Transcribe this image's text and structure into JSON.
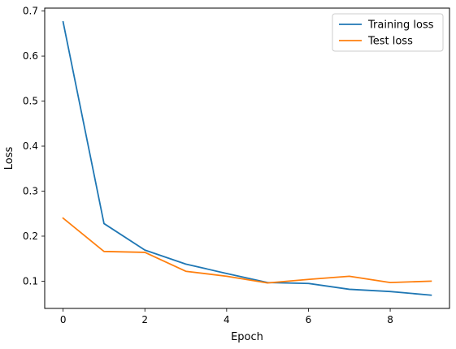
{
  "chart_data": {
    "type": "line",
    "title": "",
    "xlabel": "Epoch",
    "ylabel": "Loss",
    "xlim": [
      -0.45,
      9.45
    ],
    "ylim": [
      0.0395,
      0.7065
    ],
    "xticks": [
      0,
      2,
      4,
      6,
      8
    ],
    "xtick_labels": [
      "0",
      "2",
      "4",
      "6",
      "8"
    ],
    "yticks": [
      0.1,
      0.2,
      0.3,
      0.4,
      0.5,
      0.6,
      0.7
    ],
    "ytick_labels": [
      "0.1",
      "0.2",
      "0.3",
      "0.4",
      "0.5",
      "0.6",
      "0.7"
    ],
    "grid": false,
    "legend_position": "top-right",
    "x": [
      0,
      1,
      2,
      3,
      4,
      5,
      6,
      7,
      8,
      9
    ],
    "series": [
      {
        "name": "Training loss",
        "color": "#1f77b4",
        "values": [
          0.676,
          0.228,
          0.169,
          0.138,
          0.117,
          0.097,
          0.095,
          0.082,
          0.077,
          0.069
        ]
      },
      {
        "name": "Test loss",
        "color": "#ff7f0e",
        "values": [
          0.24,
          0.166,
          0.164,
          0.122,
          0.111,
          0.096,
          0.104,
          0.111,
          0.097,
          0.1
        ]
      }
    ]
  }
}
